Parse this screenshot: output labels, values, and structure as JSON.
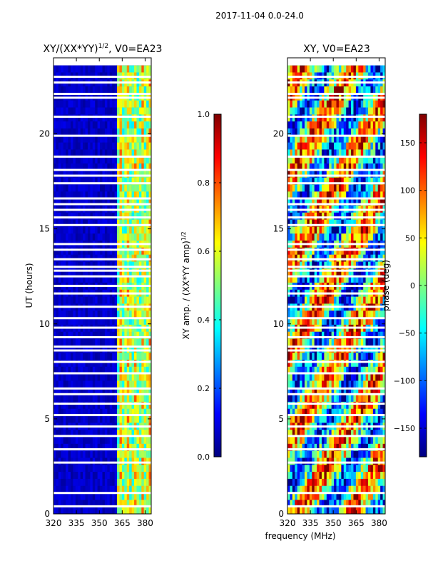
{
  "suptitle": "2017-11-04 0.0-24.0",
  "colormap": [
    "#00007f",
    "#0000ff",
    "#007fff",
    "#00ffff",
    "#7fff7f",
    "#ffff00",
    "#ff7f00",
    "#ff0000",
    "#7f0000"
  ],
  "chart_data": [
    {
      "type": "heatmap",
      "title_text": "XY/(XX*YY)",
      "title_exponent": "1/2",
      "title_suffix": ", V0=EA23",
      "xlabel": "",
      "ylabel": "UT (hours)",
      "xlim": [
        320,
        384
      ],
      "ylim": [
        0,
        24
      ],
      "xticks": [
        "320",
        "335",
        "350",
        "365",
        "380"
      ],
      "xtick_values": [
        320,
        335,
        350,
        365,
        380
      ],
      "yticks": [
        "0",
        "5",
        "10",
        "15",
        "20"
      ],
      "ytick_values": [
        0,
        5,
        10,
        15,
        20
      ],
      "data_extent_hours": [
        0,
        23.6
      ],
      "colorbar": {
        "label_text": "XY amp. / (XX*YY amp)",
        "label_exponent": "1/2",
        "range": [
          0,
          1
        ],
        "ticks": [
          "0.0",
          "0.2",
          "0.4",
          "0.6",
          "0.8",
          "1.0"
        ],
        "tick_values": [
          0,
          0.2,
          0.4,
          0.6,
          0.8,
          1.0
        ]
      },
      "blank_rows_hours": [
        0.4,
        1.1,
        2.7,
        3.4,
        4.1,
        4.6,
        5.2,
        5.8,
        6.3,
        6.6,
        7.4,
        8.0,
        8.6,
        8.8,
        9.3,
        9.8,
        10.3,
        10.9,
        11.6,
        12.0,
        12.5,
        12.8,
        13.0,
        13.4,
        13.9,
        14.2,
        15.2,
        15.6,
        16.0,
        16.3,
        16.6,
        17.4,
        17.8,
        18.1,
        18.8,
        19.9,
        20.9,
        21.9,
        22.1,
        22.7,
        23.0
      ]
    },
    {
      "type": "heatmap",
      "title_text": "XY, V0=EA23",
      "xlabel": "frequency (MHz)",
      "ylabel": "",
      "xlim": [
        320,
        384
      ],
      "ylim": [
        0,
        24
      ],
      "xticks": [
        "320",
        "335",
        "350",
        "365",
        "380"
      ],
      "xtick_values": [
        320,
        335,
        350,
        365,
        380
      ],
      "yticks": [
        "0",
        "5",
        "10",
        "15",
        "20"
      ],
      "ytick_values": [
        0,
        5,
        10,
        15,
        20
      ],
      "data_extent_hours": [
        0,
        23.6
      ],
      "colorbar": {
        "label_text": "phase (deg)",
        "range": [
          -180,
          180
        ],
        "ticks": [
          "−150",
          "−100",
          "−50",
          "0",
          "50",
          "100",
          "150"
        ],
        "tick_values": [
          -150,
          -100,
          -50,
          0,
          50,
          100,
          150
        ]
      },
      "blank_rows_hours": [
        0.4,
        1.1,
        2.7,
        3.4,
        4.1,
        4.6,
        5.2,
        5.8,
        6.3,
        6.6,
        7.4,
        8.0,
        8.6,
        8.8,
        9.3,
        9.8,
        10.3,
        10.9,
        11.6,
        12.0,
        12.5,
        12.8,
        13.0,
        13.4,
        13.9,
        14.2,
        15.2,
        15.6,
        16.0,
        16.3,
        16.6,
        17.4,
        17.8,
        18.1,
        18.8,
        19.9,
        20.9,
        21.9,
        22.1,
        22.7,
        23.0
      ]
    }
  ]
}
